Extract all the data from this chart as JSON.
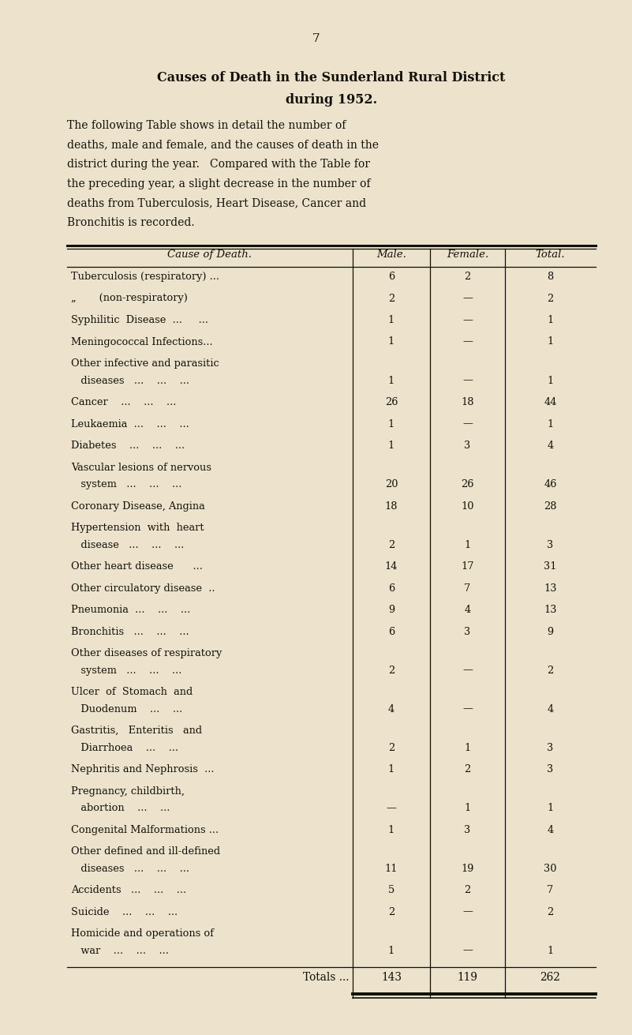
{
  "page_number": "7",
  "title_line1": "Causes of Death in the Sunderland Rural District",
  "title_line2": "during 1952.",
  "body_lines": [
    "The following Table shows in detail the number of",
    "deaths, male and female, and the causes of death in the",
    "district during the year.   Compared with the Table for",
    "the preceding year, a slight decrease in the number of",
    "deaths from Tuberculosis, Heart Disease, Cancer and",
    "Bronchitis is recorded."
  ],
  "col_headers": [
    "Cause of Death.",
    "Male.",
    "Female.",
    "Total."
  ],
  "rows": [
    {
      "cause": [
        "Tuberculosis (respiratory) ..."
      ],
      "male": "6",
      "female": "2",
      "total": "8"
    },
    {
      "cause": [
        "„       (non-respiratory)"
      ],
      "male": "2",
      "female": "—",
      "total": "2"
    },
    {
      "cause": [
        "Syphilitic  Disease  ...     ..."
      ],
      "male": "1",
      "female": "—",
      "total": "1"
    },
    {
      "cause": [
        "Meningococcal Infections..."
      ],
      "male": "1",
      "female": "—",
      "total": "1"
    },
    {
      "cause": [
        "Other infective and parasitic",
        "   diseases   ...    ...    ..."
      ],
      "male": "1",
      "female": "—",
      "total": "1"
    },
    {
      "cause": [
        "Cancer    ...    ...    ..."
      ],
      "male": "26",
      "female": "18",
      "total": "44"
    },
    {
      "cause": [
        "Leukaemia  ...    ...    ..."
      ],
      "male": "1",
      "female": "—",
      "total": "1"
    },
    {
      "cause": [
        "Diabetes    ...    ...    ..."
      ],
      "male": "1",
      "female": "3",
      "total": "4"
    },
    {
      "cause": [
        "Vascular lesions of nervous",
        "   system   ...    ...    ..."
      ],
      "male": "20",
      "female": "26",
      "total": "46"
    },
    {
      "cause": [
        "Coronary Disease, Angina"
      ],
      "male": "18",
      "female": "10",
      "total": "28"
    },
    {
      "cause": [
        "Hypertension  with  heart",
        "   disease   ...    ...    ..."
      ],
      "male": "2",
      "female": "1",
      "total": "3"
    },
    {
      "cause": [
        "Other heart disease      ..."
      ],
      "male": "14",
      "female": "17",
      "total": "31"
    },
    {
      "cause": [
        "Other circulatory disease  .."
      ],
      "male": "6",
      "female": "7",
      "total": "13"
    },
    {
      "cause": [
        "Pneumonia  ...    ...    ..."
      ],
      "male": "9",
      "female": "4",
      "total": "13"
    },
    {
      "cause": [
        "Bronchitis   ...    ...    ..."
      ],
      "male": "6",
      "female": "3",
      "total": "9"
    },
    {
      "cause": [
        "Other diseases of respiratory",
        "   system   ...    ...    ..."
      ],
      "male": "2",
      "female": "—",
      "total": "2"
    },
    {
      "cause": [
        "Ulcer  of  Stomach  and",
        "   Duodenum    ...    ..."
      ],
      "male": "4",
      "female": "—",
      "total": "4"
    },
    {
      "cause": [
        "Gastritis,   Enteritis   and",
        "   Diarrhoea    ...    ..."
      ],
      "male": "2",
      "female": "1",
      "total": "3"
    },
    {
      "cause": [
        "Nephritis and Nephrosis  ..."
      ],
      "male": "1",
      "female": "2",
      "total": "3"
    },
    {
      "cause": [
        "Pregnancy, childbirth,",
        "   abortion    ...    ..."
      ],
      "male": "—",
      "female": "1",
      "total": "1"
    },
    {
      "cause": [
        "Congenital Malformations ..."
      ],
      "male": "1",
      "female": "3",
      "total": "4"
    },
    {
      "cause": [
        "Other defined and ill-defined",
        "   diseases   ...    ...    ..."
      ],
      "male": "11",
      "female": "19",
      "total": "30"
    },
    {
      "cause": [
        "Accidents   ...    ...    ..."
      ],
      "male": "5",
      "female": "2",
      "total": "7"
    },
    {
      "cause": [
        "Suicide    ...    ...    ..."
      ],
      "male": "2",
      "female": "—",
      "total": "2"
    },
    {
      "cause": [
        "Homicide and operations of",
        "   war    ...    ...    ..."
      ],
      "male": "1",
      "female": "—",
      "total": "1"
    }
  ],
  "totals_label": "Totals ...",
  "totals_male": "143",
  "totals_female": "119",
  "totals_total": "262",
  "bg_color": "#ede3cc",
  "text_color": "#111008",
  "font_size_page_num": 11,
  "font_size_title": 11.5,
  "font_size_body": 10.0,
  "font_size_table": 9.3,
  "font_size_header": 9.5
}
